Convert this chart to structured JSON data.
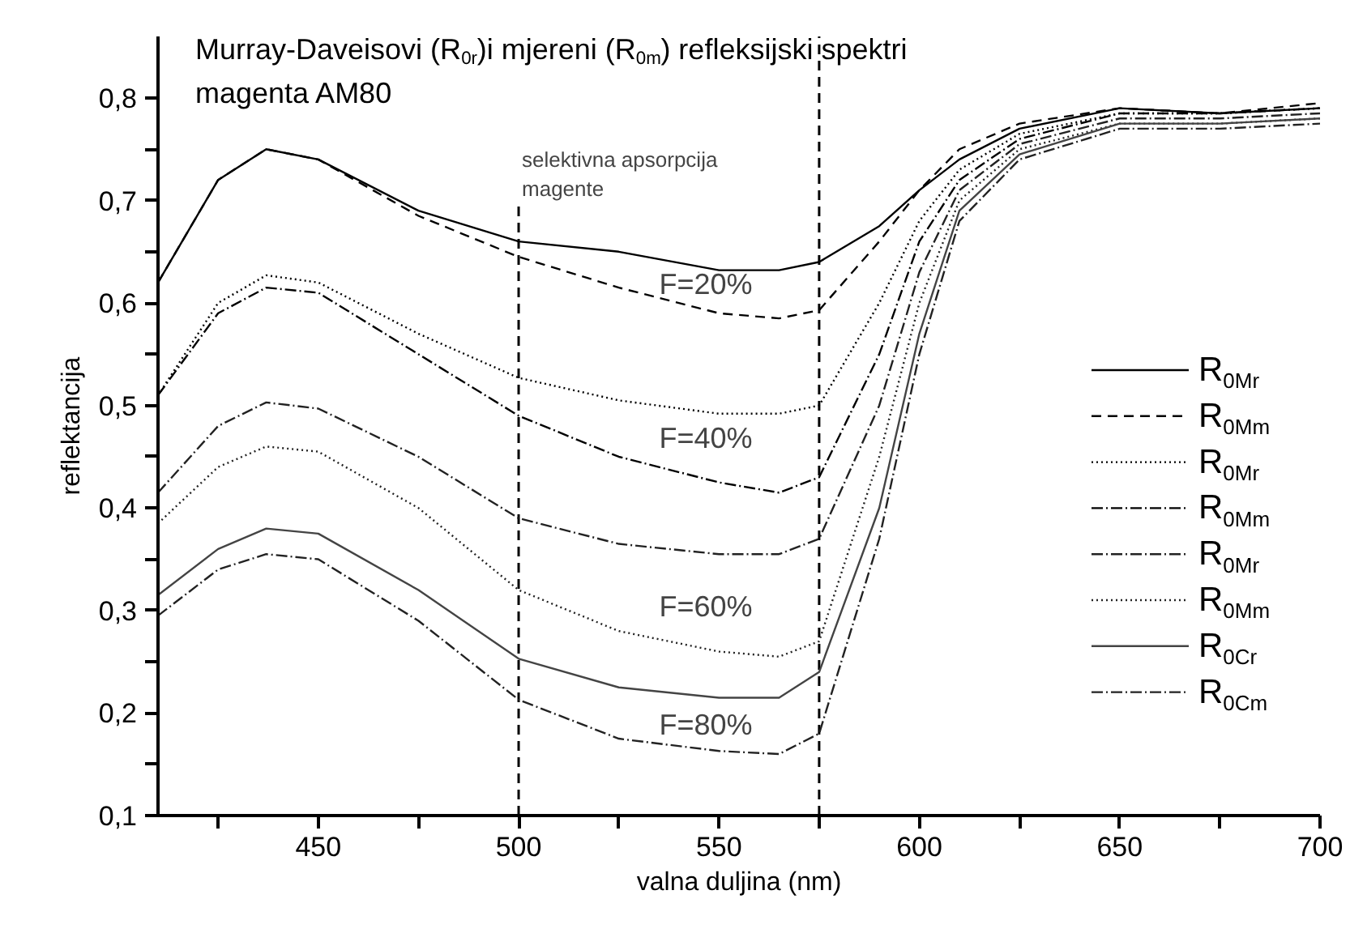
{
  "chart_data": {
    "type": "line",
    "title": "Murray-Daveisovi (R$_{0r}$)i mjereni (R$_{0m}$) refleksijski spektri\nmagenta AM80",
    "xlabel": "valna duljina (nm)",
    "ylabel": "reflektancija",
    "x": [
      410,
      425,
      437,
      450,
      475,
      500,
      525,
      550,
      565,
      575,
      590,
      600,
      610,
      625,
      650,
      675,
      700
    ],
    "series": [
      {
        "name": "R$_{0Mr}$",
        "color": "#000000",
        "line_style": "solid",
        "values": [
          0.62,
          0.72,
          0.75,
          0.74,
          0.69,
          0.66,
          0.65,
          0.632,
          0.632,
          0.64,
          0.675,
          0.71,
          0.74,
          0.77,
          0.79,
          0.785,
          0.79
        ]
      },
      {
        "name": "R$_{0Mm}$",
        "color": "#000000",
        "line_style": "dashed",
        "values": [
          0.62,
          0.72,
          0.75,
          0.74,
          0.685,
          0.645,
          0.615,
          0.59,
          0.585,
          0.593,
          0.66,
          0.71,
          0.75,
          0.775,
          0.79,
          0.785,
          0.795
        ]
      },
      {
        "name": "R$_{0Mr}$",
        "color": "#000000",
        "line_style": "dotted",
        "values": [
          0.51,
          0.6,
          0.627,
          0.62,
          0.57,
          0.527,
          0.505,
          0.492,
          0.492,
          0.5,
          0.6,
          0.68,
          0.73,
          0.765,
          0.785,
          0.785,
          0.79
        ]
      },
      {
        "name": "R$_{0Mm}$",
        "color": "#000000",
        "line_style": "dashdot",
        "values": [
          0.51,
          0.59,
          0.615,
          0.61,
          0.55,
          0.49,
          0.45,
          0.425,
          0.415,
          0.43,
          0.55,
          0.66,
          0.72,
          0.76,
          0.785,
          0.785,
          0.79
        ]
      },
      {
        "name": "R$_{0Mr}$",
        "color": "#222222",
        "line_style": "dashdot",
        "values": [
          0.415,
          0.48,
          0.503,
          0.497,
          0.45,
          0.39,
          0.365,
          0.355,
          0.355,
          0.37,
          0.5,
          0.63,
          0.71,
          0.755,
          0.78,
          0.78,
          0.785
        ]
      },
      {
        "name": "R$_{0Mm}$",
        "color": "#222222",
        "line_style": "dotted",
        "values": [
          0.385,
          0.44,
          0.46,
          0.455,
          0.4,
          0.32,
          0.28,
          0.26,
          0.255,
          0.27,
          0.45,
          0.6,
          0.7,
          0.75,
          0.775,
          0.775,
          0.78
        ]
      },
      {
        "name": "R$_{0Cr}$",
        "color": "#444444",
        "line_style": "solid",
        "values": [
          0.315,
          0.36,
          0.38,
          0.375,
          0.32,
          0.253,
          0.225,
          0.215,
          0.215,
          0.24,
          0.4,
          0.57,
          0.69,
          0.745,
          0.775,
          0.775,
          0.78
        ]
      },
      {
        "name": "R$_{0Cm}$",
        "color": "#222222",
        "line_style": "dashdot",
        "values": [
          0.295,
          0.34,
          0.355,
          0.35,
          0.29,
          0.213,
          0.175,
          0.163,
          0.16,
          0.18,
          0.37,
          0.55,
          0.68,
          0.74,
          0.77,
          0.77,
          0.775
        ]
      }
    ],
    "xlim": [
      410,
      700
    ],
    "xticks": [
      {
        "value": 425,
        "label": null
      },
      450,
      {
        "value": 475,
        "label": null
      },
      500,
      {
        "value": 525,
        "label": null
      },
      550,
      {
        "value": 575,
        "label": null
      },
      600,
      {
        "value": 625,
        "label": null
      },
      650,
      {
        "value": 675,
        "label": null
      },
      700
    ],
    "ylim": [
      0.1,
      0.86
    ],
    "yticks": [
      {
        "value": 0.1,
        "label": "0,1"
      },
      {
        "value": 0.15,
        "label": null
      },
      {
        "value": 0.2,
        "label": "0,2"
      },
      {
        "value": 0.25,
        "label": null
      },
      {
        "value": 0.3,
        "label": "0,3"
      },
      {
        "value": 0.35,
        "label": null
      },
      {
        "value": 0.4,
        "label": "0,4"
      },
      {
        "value": 0.45,
        "label": null
      },
      {
        "value": 0.5,
        "label": "0,5"
      },
      {
        "value": 0.55,
        "label": null
      },
      {
        "value": 0.6,
        "label": "0,6"
      },
      {
        "value": 0.65,
        "label": null
      },
      {
        "value": 0.7,
        "label": "0,7"
      },
      {
        "value": 0.75,
        "label": null
      },
      {
        "value": 0.8,
        "label": "0,8"
      }
    ],
    "ref_lines": [
      {
        "axis": "x",
        "value": 500,
        "line_style": "dashed",
        "color": "#000000"
      },
      {
        "axis": "x",
        "value": 575,
        "line_style": "dashed",
        "color": "#000000"
      }
    ],
    "annotations": [
      {
        "text": "selektivna apsorpcija\nmagente",
        "x": 500,
        "y": 0.7
      },
      "F=20%",
      "F=40%",
      "F=60%",
      "F=80%"
    ],
    "grid": false,
    "legend": "right"
  }
}
